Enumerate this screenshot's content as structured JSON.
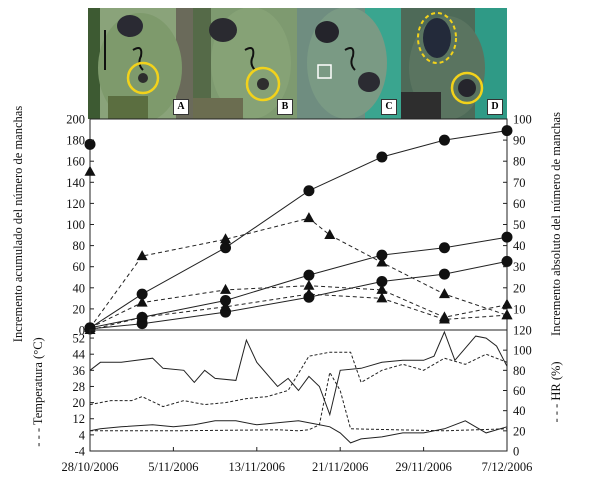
{
  "photos": [
    {
      "letter": "A",
      "color": "#7a9466"
    },
    {
      "letter": "B",
      "color": "#6f8a5c"
    },
    {
      "letter": "C",
      "color": "#5f8a7a"
    },
    {
      "letter": "D",
      "color": "#3f5f4a"
    }
  ],
  "colors": {
    "accent": "#f2d21b",
    "line": "#222222",
    "marker": "#111111"
  },
  "chart_data": [
    {
      "type": "line",
      "x": [
        "2006-10-28",
        "2006-11-02",
        "2006-11-10",
        "2006-11-18",
        "2006-11-27",
        "2006-12-03",
        "2006-12-07"
      ],
      "xticks": [
        "28/10/2006",
        "5/11/2006",
        "13/11/2006",
        "21/11/2006",
        "29/11/2006",
        "7/12/2006"
      ],
      "ylabel": "Incremento acumulado del número de manchas",
      "y2label": "Incremento absoluto del número de manchas",
      "ylim": [
        0,
        200
      ],
      "yticks": [
        0,
        20,
        40,
        60,
        80,
        100,
        120,
        140,
        160,
        180,
        200
      ],
      "y2lim": [
        0,
        100
      ],
      "y2ticks": [
        0,
        10,
        20,
        30,
        40,
        50,
        60,
        70,
        80,
        90,
        100
      ],
      "series": [
        {
          "marker": "circle",
          "style": "solid",
          "axis": "left",
          "points": [
            [
              "2006-10-28",
              2
            ],
            [
              "2006-11-02",
              34
            ],
            [
              "2006-11-10",
              78
            ],
            [
              "2006-11-18",
              132
            ],
            [
              "2006-11-25",
              164
            ],
            [
              "2006-12-01",
              180
            ],
            [
              "2006-12-07",
              189
            ]
          ]
        },
        {
          "marker": "circle",
          "style": "solid",
          "axis": "left",
          "points": [
            [
              "2006-10-28",
              2
            ],
            [
              "2006-11-02",
              12
            ],
            [
              "2006-11-10",
              28
            ],
            [
              "2006-11-18",
              52
            ],
            [
              "2006-11-25",
              71
            ],
            [
              "2006-12-01",
              78
            ],
            [
              "2006-12-07",
              88
            ]
          ]
        },
        {
          "marker": "circle",
          "style": "solid",
          "axis": "left",
          "points": [
            [
              "2006-10-28",
              1
            ],
            [
              "2006-11-02",
              6
            ],
            [
              "2006-11-10",
              17
            ],
            [
              "2006-11-18",
              31
            ],
            [
              "2006-11-25",
              46
            ],
            [
              "2006-12-01",
              53
            ],
            [
              "2006-12-07",
              65
            ]
          ]
        },
        {
          "marker": "circle",
          "style": "none",
          "axis": "left",
          "points": [
            [
              "2006-10-28",
              176
            ]
          ]
        },
        {
          "marker": "triangle",
          "style": "dashed",
          "axis": "right",
          "points": [
            [
              "2006-10-28",
              1
            ],
            [
              "2006-11-02",
              35
            ],
            [
              "2006-11-10",
              43
            ],
            [
              "2006-11-18",
              53
            ],
            [
              "2006-11-20",
              45
            ],
            [
              "2006-11-25",
              32
            ],
            [
              "2006-12-01",
              17
            ],
            [
              "2006-12-07",
              7
            ]
          ]
        },
        {
          "marker": "triangle",
          "style": "dashed",
          "axis": "right",
          "points": [
            [
              "2006-10-28",
              1
            ],
            [
              "2006-11-02",
              13
            ],
            [
              "2006-11-10",
              19
            ],
            [
              "2006-11-18",
              21
            ],
            [
              "2006-11-25",
              19
            ],
            [
              "2006-12-01",
              6
            ],
            [
              "2006-12-07",
              12
            ]
          ]
        },
        {
          "marker": "triangle",
          "style": "dashed",
          "axis": "right",
          "points": [
            [
              "2006-10-28",
              0
            ],
            [
              "2006-11-02",
              6
            ],
            [
              "2006-11-10",
              11
            ],
            [
              "2006-11-18",
              17
            ],
            [
              "2006-11-25",
              15
            ],
            [
              "2006-12-01",
              5
            ],
            [
              "2006-12-07",
              7
            ]
          ]
        },
        {
          "marker": "triangle",
          "style": "none",
          "axis": "right",
          "points": [
            [
              "2006-10-28",
              75
            ]
          ]
        }
      ]
    },
    {
      "type": "line",
      "xticks": [
        "28/10/2006",
        "5/11/2006",
        "13/11/2006",
        "21/11/2006",
        "29/11/2006",
        "7/12/2006"
      ],
      "ylabel": "Temperatura (°C)",
      "y2label": "HR (%)",
      "ylim": [
        -4,
        56
      ],
      "yticks": [
        -4,
        4,
        12,
        20,
        28,
        36,
        44,
        52
      ],
      "y2lim": [
        0,
        120
      ],
      "y2ticks": [
        0,
        20,
        40,
        60,
        80,
        100,
        120
      ],
      "series": [
        {
          "style": "solid",
          "axis": "left",
          "points": [
            [
              "2006-10-28",
              36
            ],
            [
              "2006-10-29",
              40
            ],
            [
              "2006-10-31",
              40
            ],
            [
              "2006-11-03",
              42
            ],
            [
              "2006-11-04",
              37
            ],
            [
              "2006-11-06",
              36
            ],
            [
              "2006-11-07",
              30
            ],
            [
              "2006-11-08",
              36
            ],
            [
              "2006-11-09",
              32
            ],
            [
              "2006-11-11",
              31
            ],
            [
              "2006-11-12",
              51
            ],
            [
              "2006-11-13",
              40
            ],
            [
              "2006-11-15",
              28
            ],
            [
              "2006-11-16",
              32
            ],
            [
              "2006-11-17",
              26
            ],
            [
              "2006-11-18",
              33
            ],
            [
              "2006-11-19",
              28
            ],
            [
              "2006-11-20",
              14
            ],
            [
              "2006-11-21",
              36
            ],
            [
              "2006-11-23",
              37
            ],
            [
              "2006-11-25",
              40
            ],
            [
              "2006-11-27",
              41
            ],
            [
              "2006-11-29",
              41
            ],
            [
              "2006-11-30",
              43
            ],
            [
              "2006-12-01",
              55
            ],
            [
              "2006-12-02",
              41
            ],
            [
              "2006-12-04",
              53
            ],
            [
              "2006-12-05",
              52
            ],
            [
              "2006-12-06",
              48
            ],
            [
              "2006-12-07",
              38
            ]
          ]
        },
        {
          "style": "solid",
          "axis": "left",
          "points": [
            [
              "2006-10-28",
              6
            ],
            [
              "2006-10-29",
              7
            ],
            [
              "2006-10-31",
              8
            ],
            [
              "2006-11-03",
              9
            ],
            [
              "2006-11-05",
              8
            ],
            [
              "2006-11-07",
              9
            ],
            [
              "2006-11-09",
              11
            ],
            [
              "2006-11-11",
              11
            ],
            [
              "2006-11-13",
              9
            ],
            [
              "2006-11-15",
              10
            ],
            [
              "2006-11-17",
              11
            ],
            [
              "2006-11-19",
              9
            ],
            [
              "2006-11-20",
              8
            ],
            [
              "2006-11-21",
              5
            ],
            [
              "2006-11-22",
              0
            ],
            [
              "2006-11-23",
              2
            ],
            [
              "2006-11-25",
              3
            ],
            [
              "2006-11-27",
              5
            ],
            [
              "2006-11-29",
              5
            ],
            [
              "2006-12-01",
              7
            ],
            [
              "2006-12-03",
              11
            ],
            [
              "2006-12-05",
              5
            ],
            [
              "2006-12-07",
              8
            ]
          ]
        },
        {
          "style": "dashed",
          "axis": "right",
          "points": [
            [
              "2006-10-28",
              46
            ],
            [
              "2006-10-30",
              50
            ],
            [
              "2006-11-01",
              50
            ],
            [
              "2006-11-02",
              54
            ],
            [
              "2006-11-04",
              44
            ],
            [
              "2006-11-06",
              50
            ],
            [
              "2006-11-08",
              46
            ],
            [
              "2006-11-10",
              48
            ],
            [
              "2006-11-12",
              52
            ],
            [
              "2006-11-14",
              54
            ],
            [
              "2006-11-16",
              60
            ],
            [
              "2006-11-18",
              94
            ],
            [
              "2006-11-20",
              98
            ],
            [
              "2006-11-22",
              98
            ],
            [
              "2006-11-23",
              68
            ],
            [
              "2006-11-25",
              80
            ],
            [
              "2006-11-27",
              86
            ],
            [
              "2006-11-29",
              80
            ],
            [
              "2006-12-01",
              92
            ],
            [
              "2006-12-03",
              86
            ],
            [
              "2006-12-05",
              96
            ],
            [
              "2006-12-07",
              88
            ]
          ]
        },
        {
          "style": "dashed",
          "axis": "right",
          "points": [
            [
              "2006-10-28",
              20
            ],
            [
              "2006-11-05",
              20
            ],
            [
              "2006-11-15",
              21
            ],
            [
              "2006-11-17",
              20
            ],
            [
              "2006-11-18",
              21
            ],
            [
              "2006-11-19",
              26
            ],
            [
              "2006-11-20",
              78
            ],
            [
              "2006-11-21",
              60
            ],
            [
              "2006-11-22",
              22
            ],
            [
              "2006-12-01",
              20
            ],
            [
              "2006-12-07",
              22
            ]
          ]
        }
      ]
    }
  ]
}
